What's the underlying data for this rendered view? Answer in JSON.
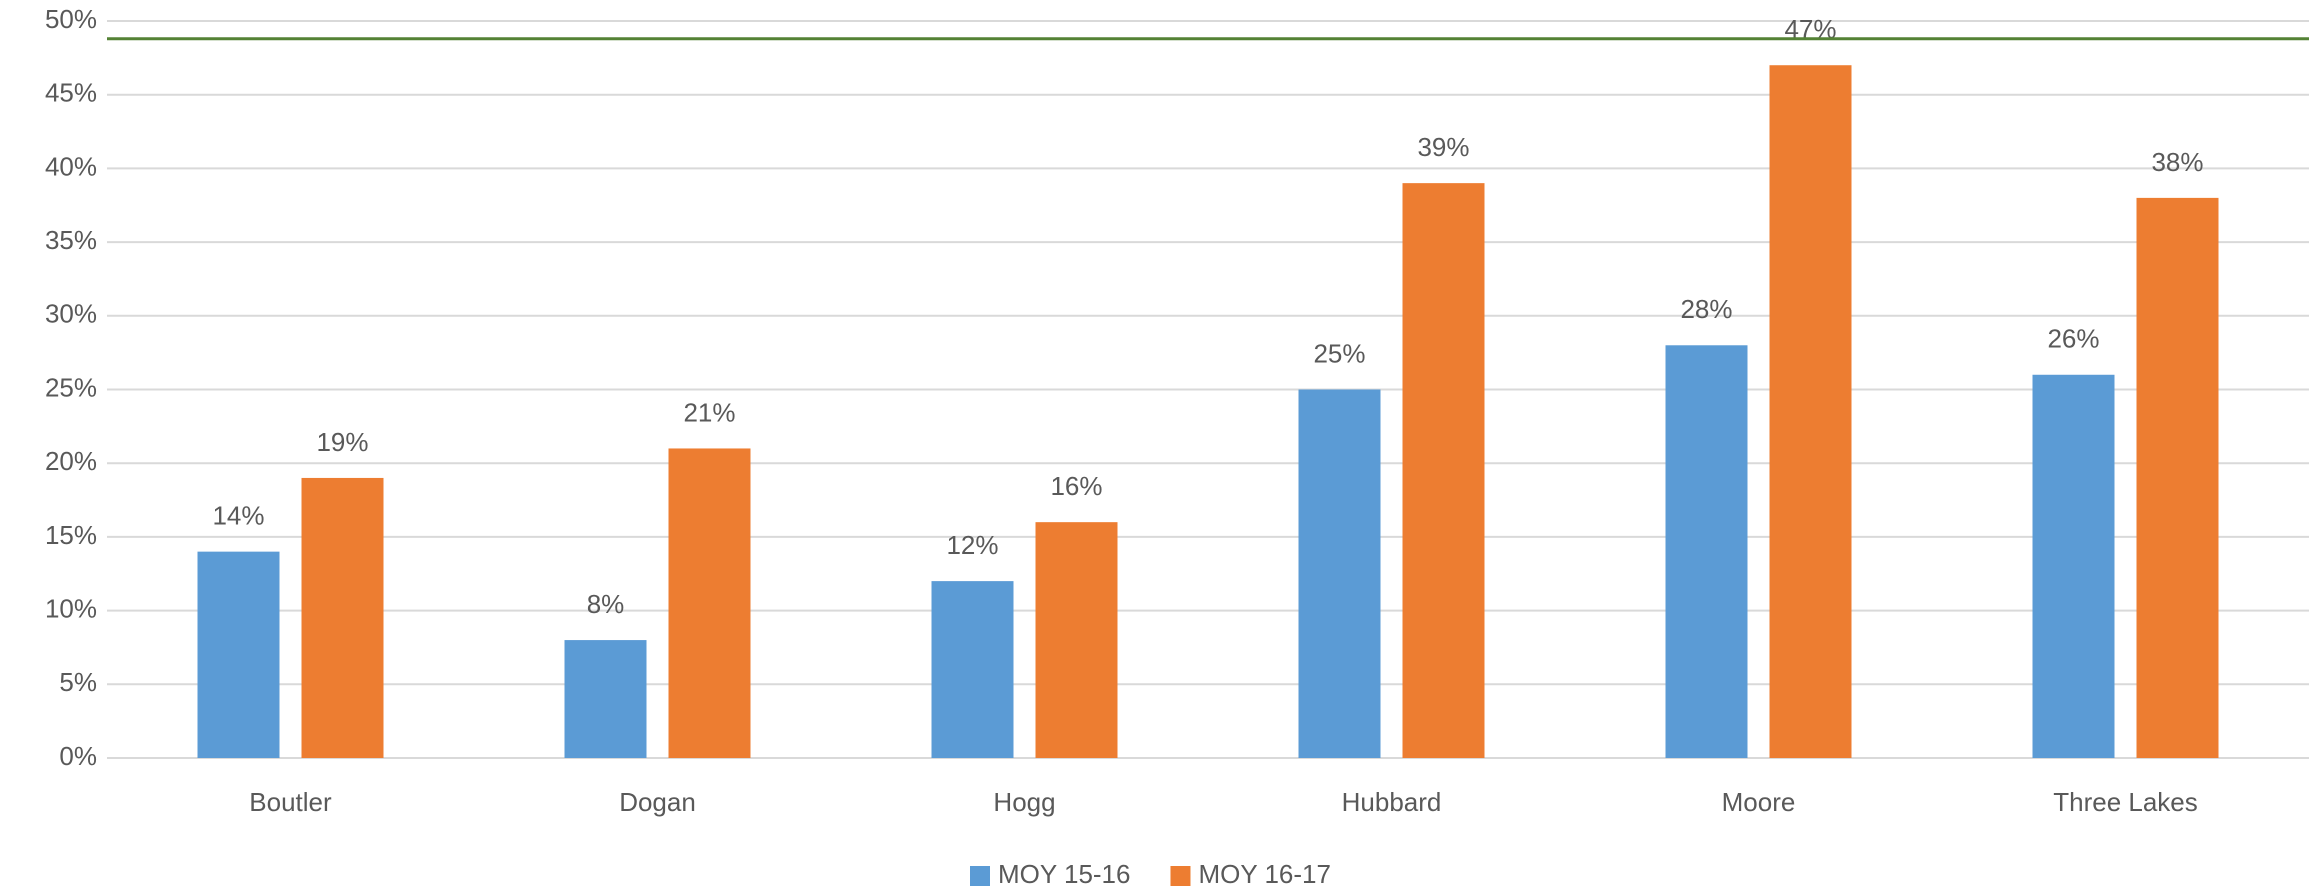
{
  "chart_data": {
    "type": "bar",
    "categories": [
      "Boutler",
      "Dogan",
      "Hogg",
      "Hubbard",
      "Moore",
      "Three Lakes"
    ],
    "series": [
      {
        "name": "MOY 15-16",
        "color": "#5b9bd5",
        "values": [
          14,
          8,
          12,
          25,
          28,
          26
        ],
        "value_labels": [
          "14%",
          "8%",
          "12%",
          "25%",
          "28%",
          "26%"
        ]
      },
      {
        "name": "MOY 16-17",
        "color": "#ed7d31",
        "values": [
          19,
          21,
          16,
          39,
          47,
          38
        ],
        "value_labels": [
          "19%",
          "21%",
          "16%",
          "39%",
          "47%",
          "38%"
        ]
      }
    ],
    "ylim": [
      0,
      50
    ],
    "yticks": [
      {
        "value": 0,
        "label": "0%"
      },
      {
        "value": 5,
        "label": "5%"
      },
      {
        "value": 10,
        "label": "10%"
      },
      {
        "value": 15,
        "label": "15%"
      },
      {
        "value": 20,
        "label": "20%"
      },
      {
        "value": 25,
        "label": "25%"
      },
      {
        "value": 30,
        "label": "30%"
      },
      {
        "value": 35,
        "label": "35%"
      },
      {
        "value": 40,
        "label": "40%"
      },
      {
        "value": 45,
        "label": "45%"
      },
      {
        "value": 50,
        "label": "50%"
      }
    ],
    "grid": true,
    "legend": "bottom",
    "reference_line": {
      "value": 48.8,
      "color": "#548235"
    }
  }
}
